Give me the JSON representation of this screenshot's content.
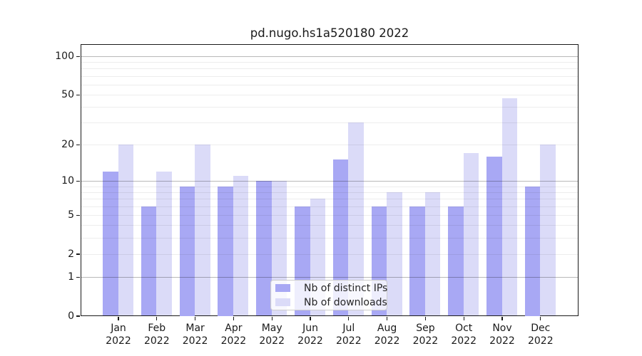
{
  "chart_data": {
    "type": "bar",
    "title": "pd.nugo.hs1a520180 2022",
    "categories": [
      "Jan 2022",
      "Feb 2022",
      "Mar 2022",
      "Apr 2022",
      "May 2022",
      "Jun 2022",
      "Jul 2022",
      "Aug 2022",
      "Sep 2022",
      "Oct 2022",
      "Nov 2022",
      "Dec 2022"
    ],
    "series": [
      {
        "name": "Nb of distinct IPs",
        "color": "#a8a8f4",
        "values": [
          12,
          6,
          9,
          9,
          10,
          6,
          15,
          6,
          6,
          6,
          16,
          9
        ]
      },
      {
        "name": "Nb of downloads",
        "color": "#dbdbf8",
        "values": [
          20,
          12,
          20,
          11,
          10,
          7,
          30,
          8,
          8,
          17,
          47,
          20
        ]
      }
    ],
    "xlabel": "",
    "ylabel": "",
    "y_scale": "log1p",
    "ylim": [
      0,
      125
    ],
    "y_ticks": [
      0,
      1,
      2,
      5,
      10,
      20,
      50,
      100
    ],
    "grid": "on",
    "major_gridlines": [
      1,
      10,
      100
    ],
    "minor_gridlines": [
      2,
      3,
      4,
      5,
      6,
      7,
      8,
      9,
      20,
      30,
      40,
      50,
      60,
      70,
      80,
      90
    ],
    "legend_position": "lower center"
  }
}
